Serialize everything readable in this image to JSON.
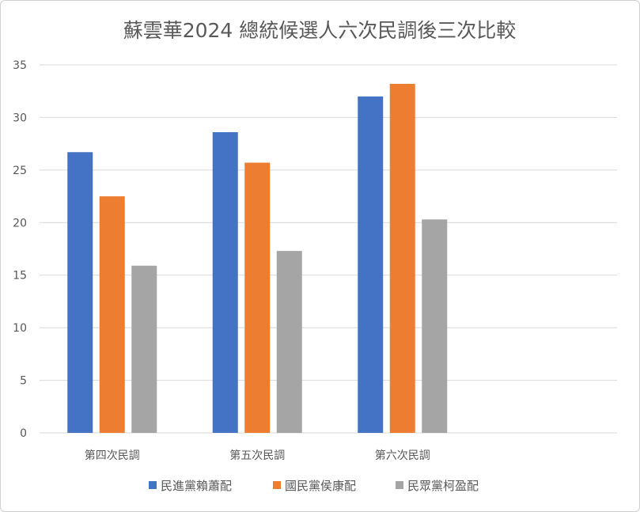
{
  "chart_data": {
    "type": "bar",
    "title": "蘇雲華2024 總統候選人六次民調後三次比較",
    "categories": [
      "第四次民調",
      "第五次民調",
      "第六次民調"
    ],
    "series": [
      {
        "name": "民進黨賴蕭配",
        "color": "#4472C4",
        "values": [
          26.7,
          28.6,
          32.0
        ]
      },
      {
        "name": "國民黨侯康配",
        "color": "#ED7D31",
        "values": [
          22.5,
          25.7,
          33.2
        ]
      },
      {
        "name": "民眾黨柯盈配",
        "color": "#A5A5A5",
        "values": [
          15.9,
          17.3,
          20.3
        ]
      }
    ],
    "yticks": [
      "0",
      "5",
      "10",
      "15",
      "20",
      "25",
      "30",
      "35"
    ],
    "ylim": [
      0,
      35
    ],
    "xlabel": "",
    "ylabel": "",
    "grid": true,
    "legend_position": "bottom"
  }
}
